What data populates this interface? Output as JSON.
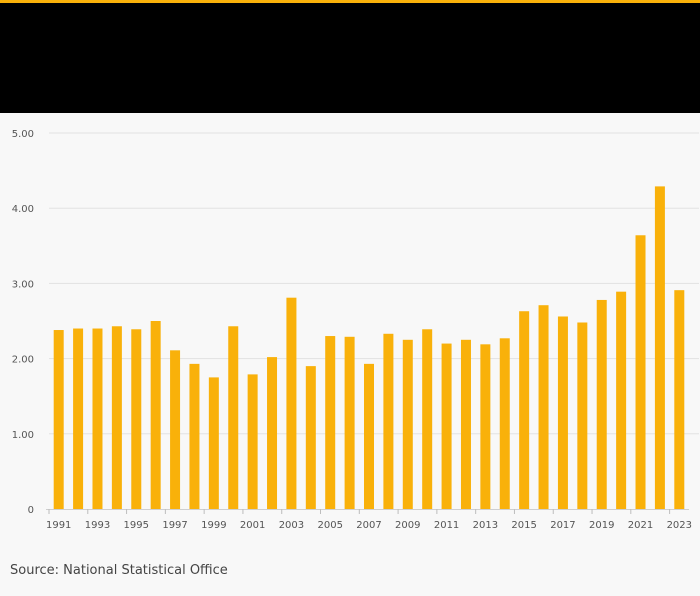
{
  "source": "Source: National Statistical Office",
  "colors": {
    "bar": "#f9b10a",
    "header": "#000000",
    "accent": "#f9b10a",
    "grid": "#e2e2e2"
  },
  "chart_data": {
    "type": "bar",
    "categories": [
      "1991",
      "1992",
      "1993",
      "1994",
      "1995",
      "1996",
      "1997",
      "1998",
      "1999",
      "2000",
      "2001",
      "2002",
      "2003",
      "2004",
      "2005",
      "2006",
      "2007",
      "2008",
      "2009",
      "2010",
      "2011",
      "2012",
      "2013",
      "2014",
      "2015",
      "2016",
      "2017",
      "2018",
      "2019",
      "2020",
      "2021",
      "2022",
      "2023"
    ],
    "values": [
      2.38,
      2.4,
      2.4,
      2.43,
      2.39,
      2.5,
      2.11,
      1.93,
      1.75,
      2.43,
      1.79,
      2.02,
      2.81,
      1.9,
      2.3,
      2.29,
      1.93,
      2.33,
      2.25,
      2.39,
      2.2,
      2.25,
      2.19,
      2.27,
      2.63,
      2.71,
      2.56,
      2.48,
      2.78,
      2.89,
      3.64,
      4.29,
      2.91
    ],
    "x_tick_labels": [
      "1991",
      "1993",
      "1995",
      "1997",
      "1999",
      "2001",
      "2003",
      "2005",
      "2007",
      "2009",
      "2011",
      "2013",
      "2015",
      "2017",
      "2019",
      "2021",
      "2023"
    ],
    "y_ticks": [
      0,
      1,
      2,
      3,
      4,
      5
    ],
    "y_tick_labels": [
      "0",
      "1.00",
      "2.00",
      "3.00",
      "4.00",
      "5.00"
    ],
    "ylim": [
      0,
      5
    ],
    "grid": true,
    "title": "",
    "xlabel": "",
    "ylabel": ""
  }
}
